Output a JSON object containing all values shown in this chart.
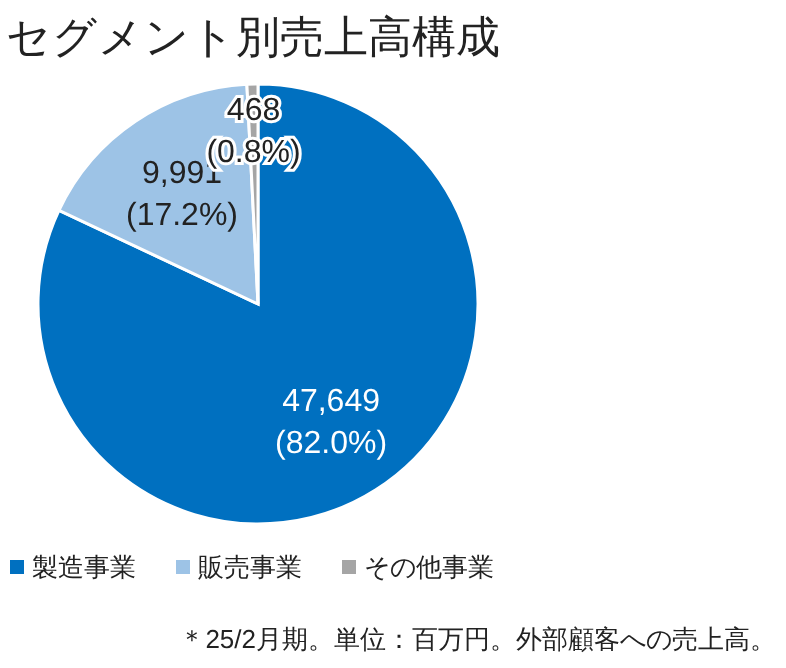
{
  "chart_data": {
    "type": "pie",
    "title": "セグメント別売上高構成",
    "categories": [
      "製造事業",
      "販売事業",
      "その他事業"
    ],
    "values": [
      47649,
      9991,
      468
    ],
    "colors": [
      "#0070c0",
      "#9dc3e6",
      "#a5a5a5"
    ],
    "value_labels": [
      "47,649\n(82.0%)",
      "9,991\n(17.2%)",
      "468\n(0.8%)"
    ],
    "legend": "bottom",
    "annotations": [
      "＊25/2月期。単位：百万円。外部顧客への売上高。"
    ]
  }
}
